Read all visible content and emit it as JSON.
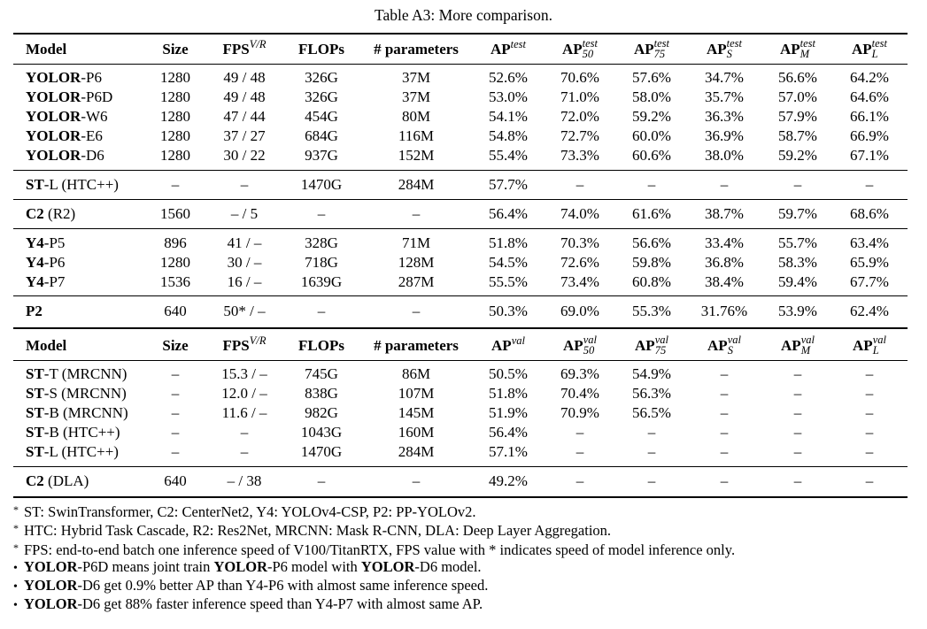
{
  "caption": "Table A3: More comparison.",
  "header_test": {
    "model": "Model",
    "size": "Size",
    "fps": "FPS",
    "fps_sup": "V/R",
    "flops": "FLOPs",
    "params": "# parameters",
    "ap": "AP",
    "ap_sup": "test",
    "ap50": "AP",
    "ap50_sup": "test",
    "ap50_sub": "50",
    "ap75": "AP",
    "ap75_sup": "test",
    "ap75_sub": "75",
    "aps": "AP",
    "aps_sup": "test",
    "aps_sub": "S",
    "apm": "AP",
    "apm_sup": "test",
    "apm_sub": "M",
    "apl": "AP",
    "apl_sup": "test",
    "apl_sub": "L"
  },
  "header_val": {
    "model": "Model",
    "size": "Size",
    "fps": "FPS",
    "fps_sup": "V/R",
    "flops": "FLOPs",
    "params": "# parameters",
    "ap": "AP",
    "ap_sup": "val",
    "ap50": "AP",
    "ap50_sup": "val",
    "ap50_sub": "50",
    "ap75": "AP",
    "ap75_sup": "val",
    "ap75_sub": "75",
    "aps": "AP",
    "aps_sup": "val",
    "aps_sub": "S",
    "apm": "AP",
    "apm_sup": "val",
    "apm_sub": "M",
    "apl": "AP",
    "apl_sup": "val",
    "apl_sub": "L"
  },
  "test_rows": [
    {
      "bold": "YOLOR",
      "rest": "-P6",
      "size": "1280",
      "fps": "49 / 48",
      "flops": "326G",
      "params": "37M",
      "ap": "52.6%",
      "ap50": "70.6%",
      "ap75": "57.6%",
      "aps": "34.7%",
      "apm": "56.6%",
      "apl": "64.2%"
    },
    {
      "bold": "YOLOR",
      "rest": "-P6D",
      "size": "1280",
      "fps": "49 / 48",
      "flops": "326G",
      "params": "37M",
      "ap": "53.0%",
      "ap50": "71.0%",
      "ap75": "58.0%",
      "aps": "35.7%",
      "apm": "57.0%",
      "apl": "64.6%"
    },
    {
      "bold": "YOLOR",
      "rest": "-W6",
      "size": "1280",
      "fps": "47 / 44",
      "flops": "454G",
      "params": "80M",
      "ap": "54.1%",
      "ap50": "72.0%",
      "ap75": "59.2%",
      "aps": "36.3%",
      "apm": "57.9%",
      "apl": "66.1%"
    },
    {
      "bold": "YOLOR",
      "rest": "-E6",
      "size": "1280",
      "fps": "37 / 27",
      "flops": "684G",
      "params": "116M",
      "ap": "54.8%",
      "ap50": "72.7%",
      "ap75": "60.0%",
      "aps": "36.9%",
      "apm": "58.7%",
      "apl": "66.9%"
    },
    {
      "bold": "YOLOR",
      "rest": "-D6",
      "size": "1280",
      "fps": "30 / 22",
      "flops": "937G",
      "params": "152M",
      "ap": "55.4%",
      "ap50": "73.3%",
      "ap75": "60.6%",
      "aps": "38.0%",
      "apm": "59.2%",
      "apl": "67.1%"
    },
    {
      "bold": "ST",
      "rest": "-L (HTC++)",
      "size": "–",
      "fps": "–",
      "flops": "1470G",
      "params": "284M",
      "ap": "57.7%",
      "ap50": "–",
      "ap75": "–",
      "aps": "–",
      "apm": "–",
      "apl": "–"
    },
    {
      "bold": "C2",
      "rest": " (R2)",
      "size": "1560",
      "fps": "– / 5",
      "flops": "–",
      "params": "–",
      "ap": "56.4%",
      "ap50": "74.0%",
      "ap75": "61.6%",
      "aps": "38.7%",
      "apm": "59.7%",
      "apl": "68.6%"
    },
    {
      "bold": "Y4",
      "rest": "-P5",
      "size": "896",
      "fps": "41 / –",
      "flops": "328G",
      "params": "71M",
      "ap": "51.8%",
      "ap50": "70.3%",
      "ap75": "56.6%",
      "aps": "33.4%",
      "apm": "55.7%",
      "apl": "63.4%"
    },
    {
      "bold": "Y4",
      "rest": "-P6",
      "size": "1280",
      "fps": "30 / –",
      "flops": "718G",
      "params": "128M",
      "ap": "54.5%",
      "ap50": "72.6%",
      "ap75": "59.8%",
      "aps": "36.8%",
      "apm": "58.3%",
      "apl": "65.9%"
    },
    {
      "bold": "Y4",
      "rest": "-P7",
      "size": "1536",
      "fps": "16 / –",
      "flops": "1639G",
      "params": "287M",
      "ap": "55.5%",
      "ap50": "73.4%",
      "ap75": "60.8%",
      "aps": "38.4%",
      "apm": "59.4%",
      "apl": "67.7%"
    },
    {
      "bold": "P2",
      "rest": "",
      "size": "640",
      "fps": "50* / –",
      "flops": "–",
      "params": "–",
      "ap": "50.3%",
      "ap50": "69.0%",
      "ap75": "55.3%",
      "aps": "31.76%",
      "apm": "53.9%",
      "apl": "62.4%"
    }
  ],
  "val_rows": [
    {
      "bold": "ST",
      "rest": "-T (MRCNN)",
      "size": "–",
      "fps": "15.3 / –",
      "flops": "745G",
      "params": "86M",
      "ap": "50.5%",
      "ap50": "69.3%",
      "ap75": "54.9%",
      "aps": "–",
      "apm": "–",
      "apl": "–"
    },
    {
      "bold": "ST",
      "rest": "-S (MRCNN)",
      "size": "–",
      "fps": "12.0 / –",
      "flops": "838G",
      "params": "107M",
      "ap": "51.8%",
      "ap50": "70.4%",
      "ap75": "56.3%",
      "aps": "–",
      "apm": "–",
      "apl": "–"
    },
    {
      "bold": "ST",
      "rest": "-B (MRCNN)",
      "size": "–",
      "fps": "11.6 / –",
      "flops": "982G",
      "params": "145M",
      "ap": "51.9%",
      "ap50": "70.9%",
      "ap75": "56.5%",
      "aps": "–",
      "apm": "–",
      "apl": "–"
    },
    {
      "bold": "ST",
      "rest": "-B (HTC++)",
      "size": "–",
      "fps": "–",
      "flops": "1043G",
      "params": "160M",
      "ap": "56.4%",
      "ap50": "–",
      "ap75": "–",
      "aps": "–",
      "apm": "–",
      "apl": "–"
    },
    {
      "bold": "ST",
      "rest": "-L (HTC++)",
      "size": "–",
      "fps": "–",
      "flops": "1470G",
      "params": "284M",
      "ap": "57.1%",
      "ap50": "–",
      "ap75": "–",
      "aps": "–",
      "apm": "–",
      "apl": "–"
    },
    {
      "bold": "C2",
      "rest": " (DLA)",
      "size": "640",
      "fps": "– / 38",
      "flops": "–",
      "params": "–",
      "ap": "49.2%",
      "ap50": "–",
      "ap75": "–",
      "aps": "–",
      "apm": "–",
      "apl": "–"
    }
  ],
  "notes": [
    {
      "marker": "*",
      "parts": [
        {
          "b": false,
          "t": "ST: SwinTransformer, C2: CenterNet2, Y4: YOLOv4-CSP, P2: PP-YOLOv2."
        }
      ]
    },
    {
      "marker": "*",
      "parts": [
        {
          "b": false,
          "t": "HTC: Hybrid Task Cascade, R2: Res2Net, MRCNN: Mask R-CNN, DLA: Deep Layer Aggregation."
        }
      ]
    },
    {
      "marker": "*",
      "parts": [
        {
          "b": false,
          "t": "FPS: end-to-end batch one inference speed of V100/TitanRTX, FPS value with * indicates speed of model inference only."
        }
      ]
    },
    {
      "marker": "•",
      "parts": [
        {
          "b": true,
          "t": "YOLOR"
        },
        {
          "b": false,
          "t": "-P6D means joint train "
        },
        {
          "b": true,
          "t": "YOLOR"
        },
        {
          "b": false,
          "t": "-P6 model with "
        },
        {
          "b": true,
          "t": "YOLOR"
        },
        {
          "b": false,
          "t": "-D6 model."
        }
      ]
    },
    {
      "marker": "•",
      "parts": [
        {
          "b": true,
          "t": "YOLOR"
        },
        {
          "b": false,
          "t": "-D6 get 0.9% better AP than Y4-P6 with almost same inference speed."
        }
      ]
    },
    {
      "marker": "•",
      "parts": [
        {
          "b": true,
          "t": "YOLOR"
        },
        {
          "b": false,
          "t": "-D6 get 88% faster inference speed than Y4-P7 with almost same AP."
        }
      ]
    }
  ]
}
